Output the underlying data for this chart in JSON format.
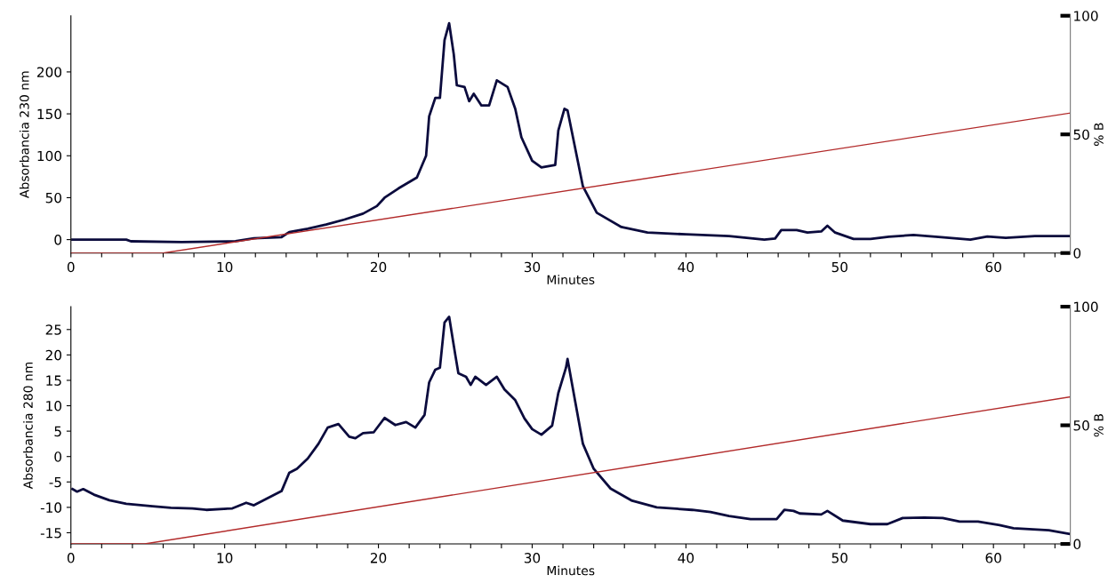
{
  "chart_data": [
    {
      "type": "line",
      "xlabel": "Minutes",
      "ylabel": "Absorbancia 230 nm",
      "y2label": "% B",
      "xlim": [
        0,
        65
      ],
      "ylim": [
        -16,
        267
      ],
      "y2lim": [
        0,
        100
      ],
      "xticks": [
        0,
        {
          "value": 2,
          "label": null
        },
        {
          "value": 4,
          "label": null
        },
        {
          "value": 6,
          "label": null
        },
        {
          "value": 8,
          "label": null
        },
        10,
        {
          "value": 12,
          "label": null
        },
        {
          "value": 14,
          "label": null
        },
        {
          "value": 16,
          "label": null
        },
        {
          "value": 18,
          "label": null
        },
        20,
        {
          "value": 22,
          "label": null
        },
        {
          "value": 24,
          "label": null
        },
        {
          "value": 26,
          "label": null
        },
        {
          "value": 28,
          "label": null
        },
        30,
        {
          "value": 32,
          "label": null
        },
        {
          "value": 34,
          "label": null
        },
        {
          "value": 36,
          "label": null
        },
        {
          "value": 38,
          "label": null
        },
        40,
        {
          "value": 42,
          "label": null
        },
        {
          "value": 44,
          "label": null
        },
        {
          "value": 46,
          "label": null
        },
        {
          "value": 48,
          "label": null
        },
        50,
        {
          "value": 52,
          "label": null
        },
        {
          "value": 54,
          "label": null
        },
        {
          "value": 56,
          "label": null
        },
        {
          "value": 58,
          "label": null
        },
        60,
        {
          "value": 62,
          "label": null
        },
        {
          "value": 64,
          "label": null
        }
      ],
      "yticks": [
        0,
        50,
        100,
        150,
        200
      ],
      "y2ticks": [
        0,
        50,
        100
      ],
      "grid": false,
      "marker": "none",
      "line_style": "solid",
      "series": [
        {
          "color": "#0b0b3d",
          "x": [
            0.1,
            3.6,
            3.9,
            7.2,
            10.7,
            11.9,
            13.7,
            14.2,
            15.4,
            16.6,
            17.8,
            19.0,
            19.9,
            20.4,
            21.3,
            22.5,
            23.1,
            23.3,
            23.7,
            24.0,
            24.3,
            24.6,
            24.9,
            25.1,
            25.6,
            25.9,
            26.2,
            26.7,
            27.2,
            27.7,
            28.4,
            28.9,
            29.3,
            30.0,
            30.6,
            31.5,
            31.7,
            32.1,
            32.3,
            33.3,
            34.2,
            35.8,
            37.5,
            40.0,
            42.8,
            45.1,
            45.8,
            46.2,
            47.2,
            47.9,
            48.8,
            49.2,
            49.7,
            50.9,
            52.0,
            53.2,
            54.8,
            56.6,
            58.5,
            59.6,
            60.8,
            62.7,
            64.9
          ],
          "values": [
            0,
            0,
            -2,
            -3,
            -2,
            1.5,
            3,
            9,
            13,
            18,
            24,
            31,
            40,
            50,
            61,
            74,
            100,
            147,
            169,
            169,
            238,
            258,
            221,
            184,
            182,
            165,
            174,
            160,
            160,
            190,
            182,
            156,
            122,
            94,
            86,
            89,
            130,
            156,
            154,
            63.5,
            32,
            15,
            8.4,
            6.3,
            4.2,
            0,
            1.3,
            11.4,
            11.4,
            8.4,
            9.7,
            16.5,
            8.4,
            0.8,
            0.8,
            3.4,
            5.5,
            3,
            0,
            3.8,
            2.1,
            4.2,
            4.2
          ]
        },
        {
          "color": "#b22a2a",
          "axis": "y2",
          "x": [
            0,
            6,
            65
          ],
          "values": [
            0,
            0,
            59
          ]
        }
      ]
    },
    {
      "type": "line",
      "xlabel": "Minutes",
      "ylabel": "Absorbancia 280 nm",
      "y2label": "% B",
      "xlim": [
        0,
        65
      ],
      "ylim": [
        -17.2,
        29.5
      ],
      "y2lim": [
        0,
        100
      ],
      "xticks": [
        0,
        {
          "value": 2,
          "label": null
        },
        {
          "value": 4,
          "label": null
        },
        {
          "value": 6,
          "label": null
        },
        {
          "value": 8,
          "label": null
        },
        10,
        {
          "value": 12,
          "label": null
        },
        {
          "value": 14,
          "label": null
        },
        {
          "value": 16,
          "label": null
        },
        {
          "value": 18,
          "label": null
        },
        20,
        {
          "value": 22,
          "label": null
        },
        {
          "value": 24,
          "label": null
        },
        {
          "value": 26,
          "label": null
        },
        {
          "value": 28,
          "label": null
        },
        30,
        {
          "value": 32,
          "label": null
        },
        {
          "value": 34,
          "label": null
        },
        {
          "value": 36,
          "label": null
        },
        {
          "value": 38,
          "label": null
        },
        40,
        {
          "value": 42,
          "label": null
        },
        {
          "value": 44,
          "label": null
        },
        {
          "value": 46,
          "label": null
        },
        {
          "value": 48,
          "label": null
        },
        50,
        {
          "value": 52,
          "label": null
        },
        {
          "value": 54,
          "label": null
        },
        {
          "value": 56,
          "label": null
        },
        {
          "value": 58,
          "label": null
        },
        60,
        {
          "value": 62,
          "label": null
        },
        {
          "value": 64,
          "label": null
        }
      ],
      "yticks": [
        -15,
        -10,
        -5,
        0,
        5,
        10,
        15,
        20,
        25
      ],
      "y2ticks": [
        0,
        50,
        100
      ],
      "grid": false,
      "marker": "none",
      "line_style": "solid",
      "series": [
        {
          "color": "#0b0b3d",
          "x": [
            0.1,
            0.4,
            0.8,
            1.5,
            2.5,
            3.6,
            5.3,
            6.5,
            7.9,
            8.8,
            10.5,
            11.4,
            11.9,
            12.8,
            13.7,
            14.2,
            14.7,
            15.4,
            16.1,
            16.7,
            17.4,
            18.1,
            18.5,
            19.0,
            19.7,
            20.4,
            21.1,
            21.8,
            22.4,
            23.0,
            23.3,
            23.7,
            24.0,
            24.3,
            24.6,
            25.0,
            25.2,
            25.7,
            26.0,
            26.3,
            27.0,
            27.7,
            28.2,
            28.9,
            29.5,
            30.0,
            30.6,
            31.3,
            31.7,
            32.2,
            32.3,
            32.8,
            33.3,
            34.0,
            35.1,
            36.5,
            38.1,
            40.4,
            41.6,
            42.8,
            44.2,
            45.9,
            46.4,
            47.0,
            47.4,
            48.8,
            49.2,
            50.2,
            52.0,
            53.1,
            54.1,
            55.5,
            56.7,
            57.8,
            59.0,
            60.4,
            61.3,
            63.6,
            64.9
          ],
          "values": [
            -6.4,
            -6.9,
            -6.4,
            -7.5,
            -8.6,
            -9.3,
            -9.8,
            -10.1,
            -10.2,
            -10.5,
            -10.2,
            -9.1,
            -9.6,
            -8.2,
            -6.8,
            -3.2,
            -2.4,
            -0.4,
            2.5,
            5.7,
            6.4,
            3.9,
            3.6,
            4.6,
            4.8,
            7.6,
            6.2,
            6.8,
            5.7,
            8.2,
            14.6,
            17.1,
            17.5,
            26.4,
            27.5,
            20,
            16.4,
            15.7,
            14.1,
            15.7,
            14.1,
            15.7,
            13.2,
            11.1,
            7.5,
            5.4,
            4.3,
            6.1,
            12.5,
            17.5,
            19.2,
            10.8,
            2.5,
            -2.4,
            -6.3,
            -8.7,
            -10.0,
            -10.5,
            -10.9,
            -11.7,
            -12.3,
            -12.3,
            -10.5,
            -10.7,
            -11.2,
            -11.4,
            -10.7,
            -12.6,
            -13.3,
            -13.3,
            -12.1,
            -12.0,
            -12.1,
            -12.8,
            -12.8,
            -13.5,
            -14.1,
            -14.5,
            -15.2
          ]
        },
        {
          "color": "#b22a2a",
          "axis": "y2",
          "x": [
            0,
            4.8,
            65
          ],
          "values": [
            0,
            0,
            62
          ]
        }
      ]
    }
  ]
}
